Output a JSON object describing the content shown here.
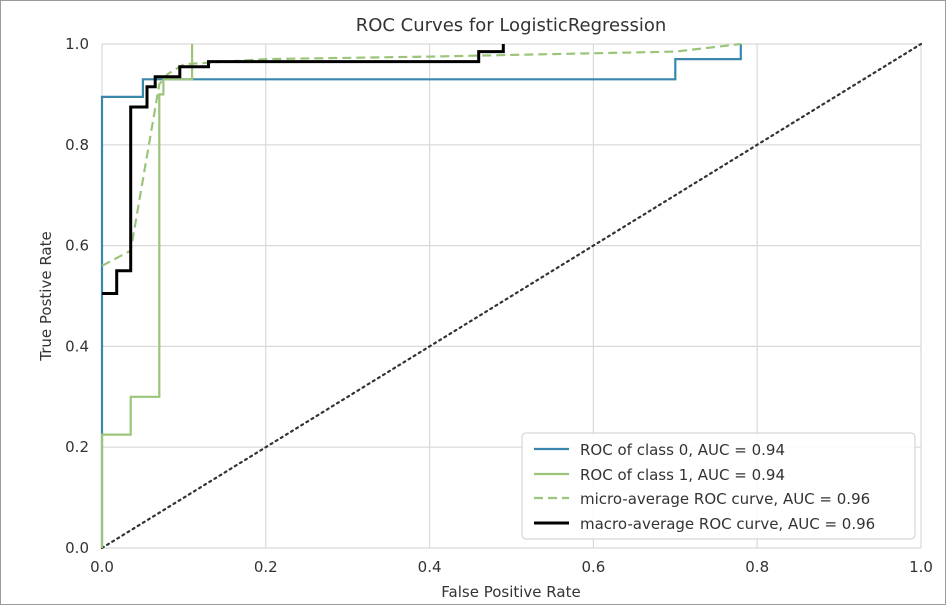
{
  "chart_data": {
    "type": "line",
    "title": "ROC Curves for LogisticRegression",
    "xlabel": "False Positive Rate",
    "ylabel": "True Postive Rate",
    "xlim": [
      0.0,
      1.0
    ],
    "ylim": [
      0.0,
      1.0
    ],
    "xticks": [
      "0.0",
      "0.2",
      "0.4",
      "0.6",
      "0.8",
      "1.0"
    ],
    "yticks": [
      "0.0",
      "0.2",
      "0.4",
      "0.6",
      "0.8",
      "1.0"
    ],
    "grid": true,
    "legend_position": "lower-right",
    "series": [
      {
        "name": "ROC of class 0, AUC = 0.94",
        "color": "#3a87ae",
        "style": "solid",
        "x": [
          0.0,
          0.0,
          0.05,
          0.05,
          0.7,
          0.7,
          0.78,
          0.78
        ],
        "y": [
          0.0,
          0.895,
          0.895,
          0.93,
          0.93,
          0.97,
          0.97,
          1.0
        ]
      },
      {
        "name": "ROC of class 1, AUC = 0.94",
        "color": "#9bc57a",
        "style": "solid",
        "x": [
          0.0,
          0.0,
          0.035,
          0.035,
          0.07,
          0.07,
          0.075,
          0.075,
          0.11,
          0.11
        ],
        "y": [
          0.0,
          0.225,
          0.225,
          0.3,
          0.3,
          0.9,
          0.9,
          0.93,
          0.93,
          1.0
        ]
      },
      {
        "name": "micro-average ROC curve, AUC = 0.96",
        "color": "#9bc57a",
        "style": "dashed",
        "x": [
          0.0,
          0.035,
          0.07,
          0.08,
          0.1,
          0.2,
          0.4,
          0.7,
          0.78
        ],
        "y": [
          0.56,
          0.59,
          0.92,
          0.94,
          0.96,
          0.97,
          0.975,
          0.985,
          1.0
        ]
      },
      {
        "name": "macro-average ROC curve, AUC = 0.96",
        "color": "#000000",
        "style": "solid",
        "x": [
          0.0,
          0.018,
          0.018,
          0.035,
          0.035,
          0.055,
          0.055,
          0.065,
          0.065,
          0.095,
          0.095,
          0.13,
          0.13,
          0.46,
          0.46,
          0.49,
          0.49
        ],
        "y": [
          0.505,
          0.505,
          0.55,
          0.55,
          0.875,
          0.875,
          0.915,
          0.915,
          0.935,
          0.935,
          0.955,
          0.955,
          0.965,
          0.965,
          0.985,
          0.985,
          1.0
        ]
      }
    ],
    "reference_line": {
      "x": [
        0.0,
        1.0
      ],
      "y": [
        0.0,
        1.0
      ],
      "color": "#333333",
      "style": "dotted"
    }
  }
}
